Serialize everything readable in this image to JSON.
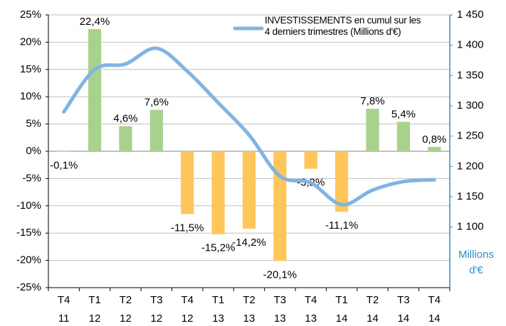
{
  "chart_data": {
    "type": "bar",
    "categories": [
      [
        "T4",
        "11"
      ],
      [
        "T1",
        "12"
      ],
      [
        "T2",
        "12"
      ],
      [
        "T3",
        "12"
      ],
      [
        "T4",
        "12"
      ],
      [
        "T1",
        "13"
      ],
      [
        "T2",
        "13"
      ],
      [
        "T3",
        "13"
      ],
      [
        "T4",
        "13"
      ],
      [
        "T1",
        "14"
      ],
      [
        "T2",
        "14"
      ],
      [
        "T3",
        "14"
      ],
      [
        "T4",
        "14"
      ]
    ],
    "values": [
      -0.1,
      22.4,
      4.6,
      7.6,
      -11.5,
      -15.2,
      -14.2,
      -20.1,
      -3.2,
      -11.1,
      7.8,
      5.4,
      0.8
    ],
    "value_labels": [
      "-0,1%",
      "22,4%",
      "4,6%",
      "7,6%",
      "-11,5%",
      "-15,2%",
      "-14,2%",
      "-20,1%",
      "-3,2%",
      "-11,1%",
      "7,8%",
      "5,4%",
      "0,8%"
    ],
    "positive_color": "#a9d18e",
    "negative_color": "#ffc65c",
    "ylim": [
      -25,
      25
    ],
    "yticks": [
      {
        "value": -25,
        "label": "-25%"
      },
      {
        "value": -20,
        "label": "-20%"
      },
      {
        "value": -15,
        "label": "-15%"
      },
      {
        "value": -10,
        "label": "-10%"
      },
      {
        "value": -5,
        "label": "-5%"
      },
      {
        "value": 0,
        "label": "0%"
      },
      {
        "value": 5,
        "label": "5%"
      },
      {
        "value": 10,
        "label": "10%"
      },
      {
        "value": 15,
        "label": "15%"
      },
      {
        "value": 20,
        "label": "20%"
      },
      {
        "value": 25,
        "label": "25%"
      }
    ],
    "y2lim": [
      1000,
      1450
    ],
    "y2ticks": [
      {
        "value": 1100,
        "label": "1 100"
      },
      {
        "value": 1150,
        "label": "1 150"
      },
      {
        "value": 1200,
        "label": "1 200"
      },
      {
        "value": 1250,
        "label": "1 250"
      },
      {
        "value": 1300,
        "label": "1 300"
      },
      {
        "value": 1350,
        "label": "1 350"
      },
      {
        "value": 1400,
        "label": "1 400"
      },
      {
        "value": 1450,
        "label": "1 450"
      }
    ],
    "y2label": "Millions\nd'€",
    "y2_color": "#2e8fc8",
    "grid": true,
    "series": [
      {
        "name": "INVESTISSEMENTS en cumul sur les\n4 derniers trimestres (Millions d'€)",
        "type": "line",
        "axis": "y2",
        "color": "#80b4e2",
        "values": [
          1290,
          1360,
          1369,
          1395,
          1357,
          1305,
          1252,
          1184,
          1173,
          1137,
          1161,
          1175,
          1178
        ]
      }
    ]
  }
}
